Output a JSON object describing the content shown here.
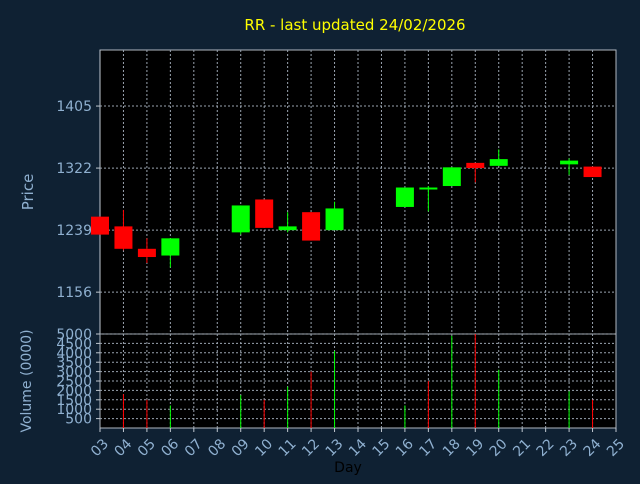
{
  "colors": {
    "background": "#0f2133",
    "plot_bg": "#000000",
    "title": "#ffff00",
    "axis_text": "#8fb0d0",
    "grid": "#9aa4b0",
    "up": "#00ff00",
    "down": "#ff0000"
  },
  "chart_data": [
    {
      "type": "candlestick",
      "title": "RR - last updated 24/02/2026",
      "ylabel": "Price",
      "ylim": [
        1100,
        1480
      ],
      "yticks": [
        "1156",
        "1239",
        "1322",
        "1405"
      ],
      "grid": true,
      "candles": [
        {
          "day": 3,
          "open": 1257,
          "close": 1233,
          "high": 1257,
          "low": 1233
        },
        {
          "day": 4,
          "open": 1244,
          "close": 1214,
          "high": 1266,
          "low": 1212
        },
        {
          "day": 5,
          "open": 1214,
          "close": 1203,
          "high": 1228,
          "low": 1195
        },
        {
          "day": 6,
          "open": 1205,
          "close": 1228,
          "high": 1228,
          "low": 1189
        },
        {
          "day": 9,
          "open": 1236,
          "close": 1272,
          "high": 1272,
          "low": 1233
        },
        {
          "day": 10,
          "open": 1280,
          "close": 1242,
          "high": 1280,
          "low": 1242
        },
        {
          "day": 11,
          "open": 1239,
          "close": 1244,
          "high": 1263,
          "low": 1236
        },
        {
          "day": 12,
          "open": 1263,
          "close": 1225,
          "high": 1263,
          "low": 1225
        },
        {
          "day": 13,
          "open": 1239,
          "close": 1268,
          "high": 1277,
          "low": 1239
        },
        {
          "day": 16,
          "open": 1270,
          "close": 1296,
          "high": 1296,
          "low": 1270
        },
        {
          "day": 17,
          "open": 1294,
          "close": 1296,
          "high": 1298,
          "low": 1264
        },
        {
          "day": 18,
          "open": 1298,
          "close": 1323,
          "high": 1323,
          "low": 1298
        },
        {
          "day": 19,
          "open": 1329,
          "close": 1322,
          "high": 1329,
          "low": 1303
        },
        {
          "day": 20,
          "open": 1325,
          "close": 1334,
          "high": 1347,
          "low": 1325
        },
        {
          "day": 23,
          "open": 1327,
          "close": 1332,
          "high": 1335,
          "low": 1313
        },
        {
          "day": 24,
          "open": 1324,
          "close": 1310,
          "high": 1324,
          "low": 1310
        }
      ]
    },
    {
      "type": "bar",
      "ylabel": "Volume (0000)",
      "xlabel": "Day",
      "ylim": [
        0,
        5000
      ],
      "yticks": [
        "500",
        "1000",
        "1500",
        "2000",
        "2500",
        "3000",
        "3500",
        "4000",
        "4500",
        "5000"
      ],
      "categories": [
        "03",
        "04",
        "05",
        "06",
        "07",
        "08",
        "09",
        "10",
        "11",
        "12",
        "13",
        "14",
        "15",
        "16",
        "17",
        "18",
        "19",
        "20",
        "21",
        "22",
        "23",
        "24",
        "25"
      ],
      "values": [
        0,
        1800,
        1500,
        1200,
        0,
        0,
        1750,
        1500,
        2200,
        3000,
        4100,
        0,
        0,
        1200,
        2500,
        4900,
        5000,
        3100,
        0,
        0,
        1950,
        1500,
        0
      ],
      "up": [
        false,
        false,
        false,
        true,
        false,
        false,
        true,
        false,
        true,
        false,
        true,
        false,
        false,
        true,
        false,
        true,
        false,
        true,
        false,
        false,
        true,
        false,
        false
      ]
    }
  ]
}
